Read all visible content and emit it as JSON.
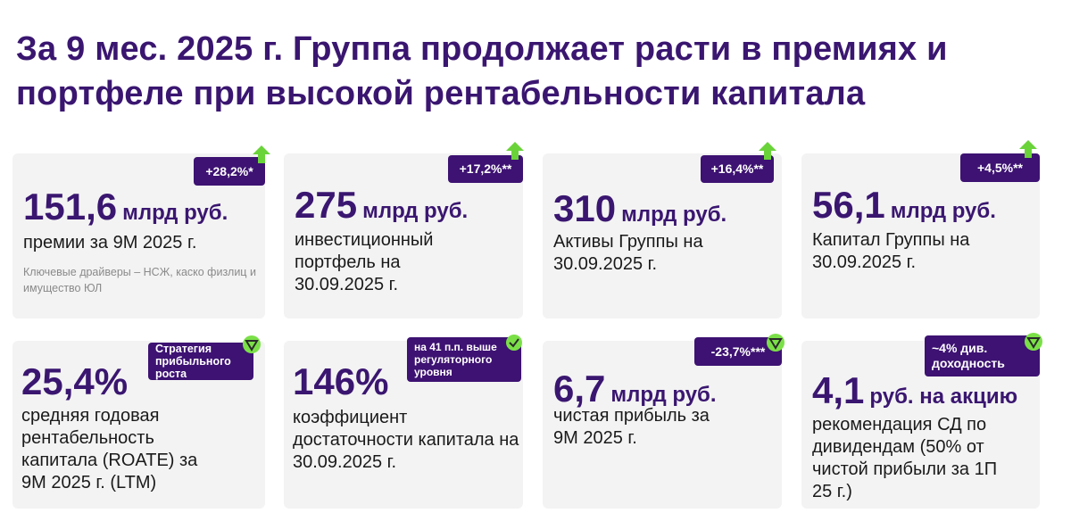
{
  "title": "За 9 мес. 2025 г. Группа продолжает расти в премиях и портфеле при высокой рентабельности капитала",
  "colors": {
    "accent": "#3a1670",
    "badge": "#3d1272",
    "up_green": "#6ad33a",
    "down_green": "#7be048",
    "card_bg": "#f3f3f3"
  },
  "cards": [
    {
      "badge": "+28,2%*",
      "icon": "arrow-up-icon",
      "value": "151,6",
      "unit": "млрд руб.",
      "desc": "премии за 9М 2025 г.",
      "note": "Ключевые драйверы – НСЖ, каско физлиц и имущество ЮЛ"
    },
    {
      "badge": "+17,2%**",
      "icon": "arrow-up-icon",
      "value": "275",
      "unit": "млрд руб.",
      "desc": "инвестиционный портфель на 30.09.2025 г."
    },
    {
      "badge": "+16,4%**",
      "icon": "arrow-up-icon",
      "value": "310",
      "unit": "млрд руб.",
      "desc": "Активы Группы на 30.09.2025 г."
    },
    {
      "badge": "+4,5%**",
      "icon": "arrow-up-icon",
      "value": "56,1",
      "unit": "млрд руб.",
      "desc": "Капитал Группы на 30.09.2025 г."
    },
    {
      "badge": "Стратегия прибыльного роста",
      "icon": "triangle-down-icon",
      "value": "25,4%",
      "unit": "",
      "desc": "средняя годовая рентабельность капитала (ROATE) за 9М 2025 г. (LTM)"
    },
    {
      "badge": "на 41 п.п. выше регуляторного уровня",
      "icon": "check-circle-icon",
      "value": "146%",
      "unit": "",
      "desc": "коэффициент достаточности капитала на 30.09.2025 г."
    },
    {
      "badge": "-23,7%***",
      "icon": "triangle-down-icon",
      "value": "6,7",
      "unit": "млрд руб.",
      "desc": "чистая прибыль за 9М 2025 г."
    },
    {
      "badge": "~4% див. доходность",
      "icon": "triangle-down-icon",
      "value": "4,1",
      "unit": "руб. на акцию",
      "desc": "рекомендация СД по дивидендам (50% от чистой прибыли за 1П 25 г.)"
    }
  ]
}
